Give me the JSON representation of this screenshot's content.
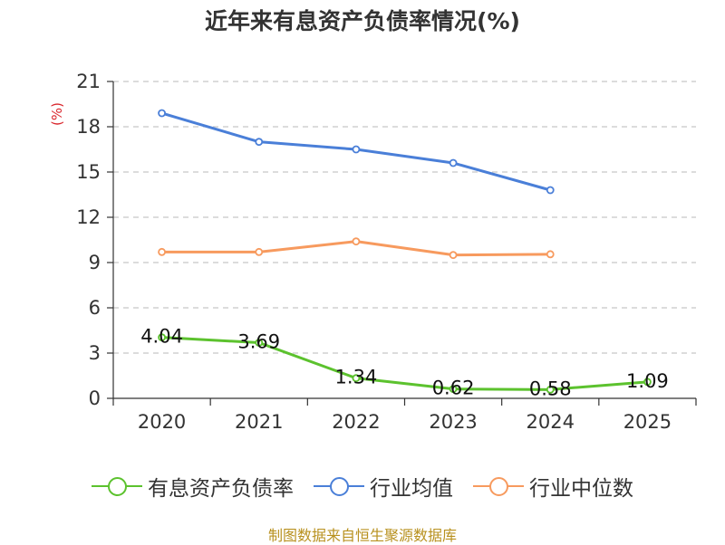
{
  "chart_data": {
    "type": "line",
    "title": "近年来有息资产负债率情况(%)",
    "ylabel": "(%)",
    "xlabel": "",
    "ylim": [
      0,
      21
    ],
    "yticks": [
      0,
      3,
      6,
      9,
      12,
      15,
      18,
      21
    ],
    "grid": true,
    "legend_position": "bottom",
    "categories": [
      "2020",
      "2021",
      "2022",
      "2023",
      "2024",
      "2025"
    ],
    "series": [
      {
        "name": "有息资产负债率",
        "color": "#5cc22e",
        "values": [
          4.04,
          3.69,
          1.34,
          0.62,
          0.58,
          1.09
        ],
        "labels": [
          "4.04",
          "3.69",
          "1.34",
          "0.62",
          "0.58",
          "1.09"
        ]
      },
      {
        "name": "行业均值",
        "color": "#4a7fd8",
        "values": [
          18.9,
          17.0,
          16.5,
          15.6,
          13.8,
          null
        ]
      },
      {
        "name": "行业中位数",
        "color": "#f79a5e",
        "values": [
          9.7,
          9.7,
          10.4,
          9.5,
          9.55,
          null
        ]
      }
    ],
    "source": "制图数据来自恒生聚源数据库"
  }
}
